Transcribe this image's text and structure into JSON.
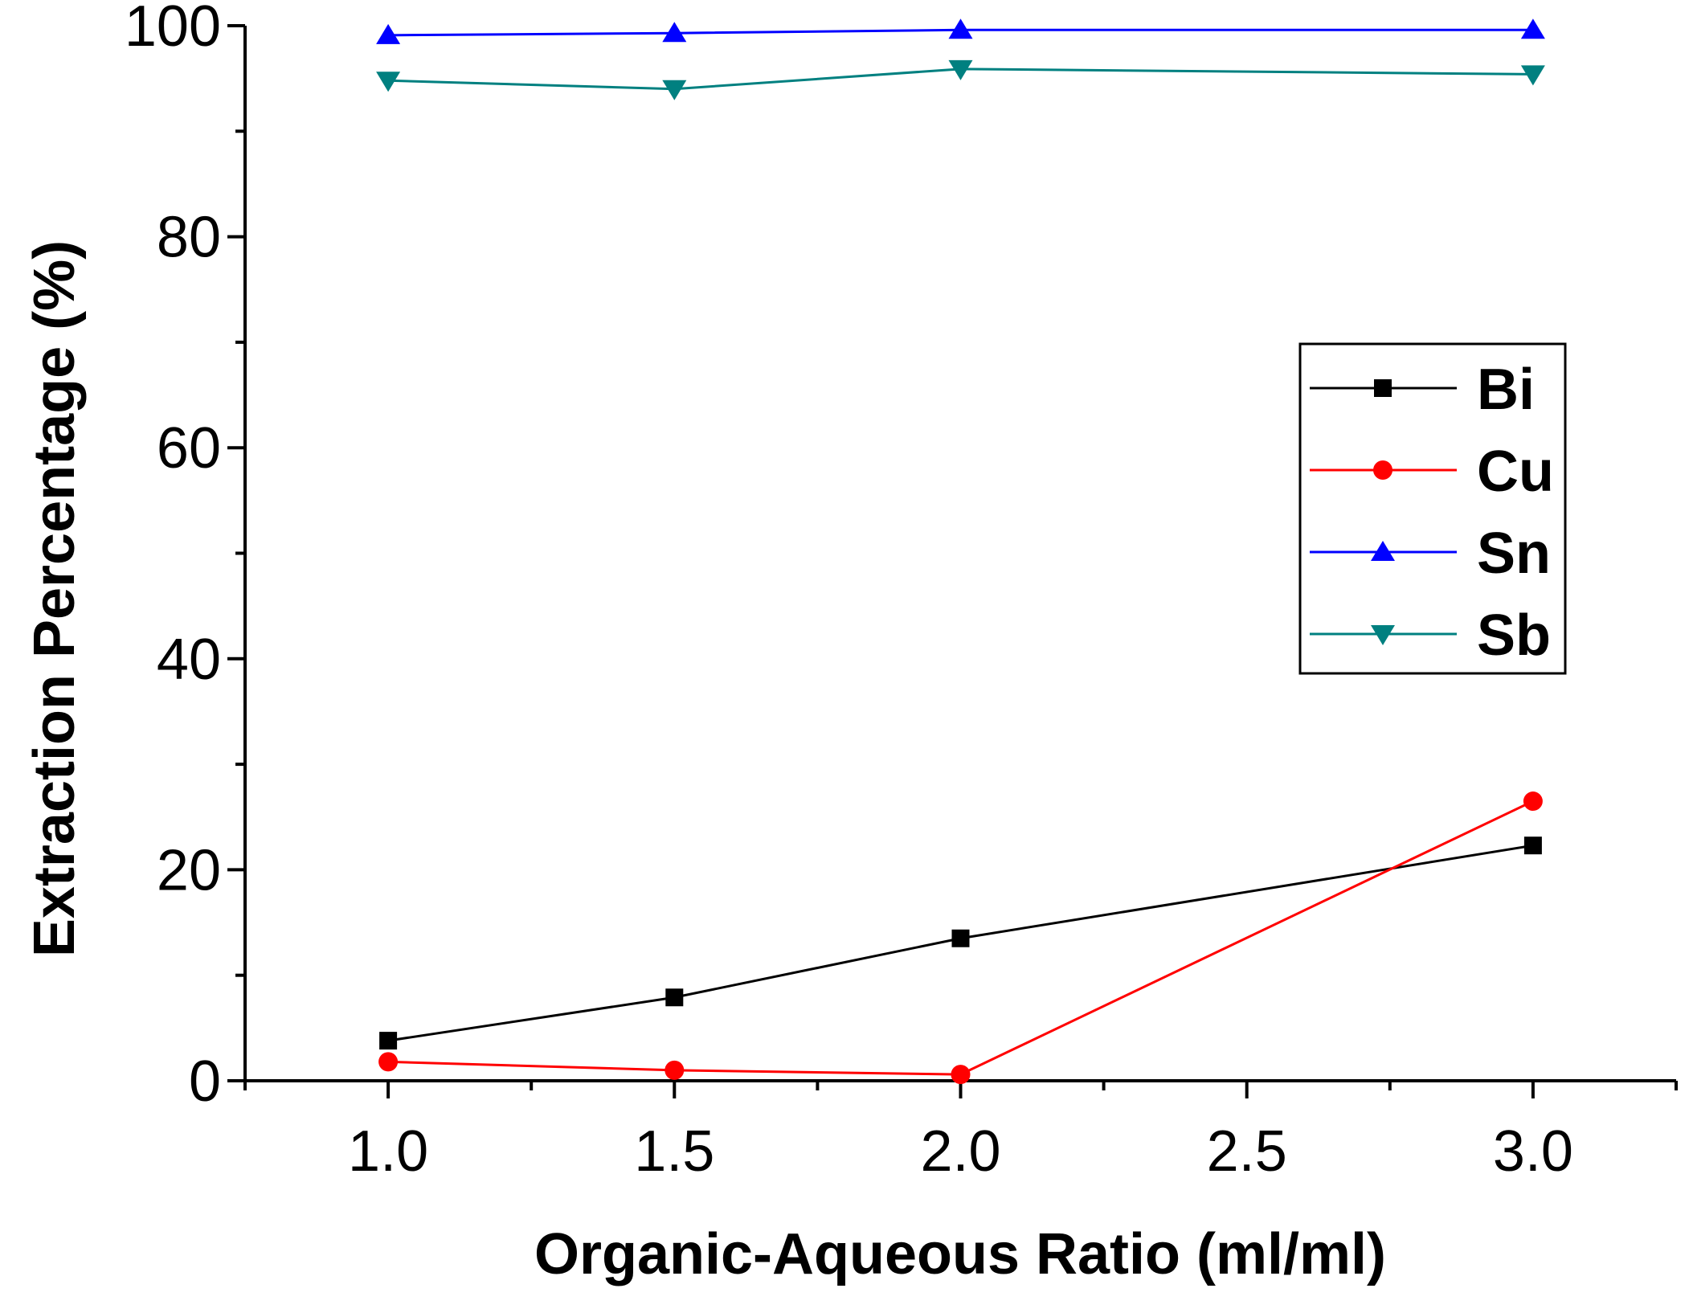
{
  "chart_data": {
    "type": "line",
    "title": "",
    "xlabel": "Organic-Aqueous Ratio (ml/ml)",
    "ylabel": "Extraction Percentage (%)",
    "xlim": [
      0.75,
      3.25
    ],
    "ylim": [
      0,
      100
    ],
    "x_ticks": [
      1.0,
      1.5,
      2.0,
      2.5,
      3.0
    ],
    "x_tick_labels": [
      "1.0",
      "1.5",
      "2.0",
      "2.5",
      "3.0"
    ],
    "y_ticks": [
      0,
      20,
      40,
      60,
      80,
      100
    ],
    "y_tick_labels": [
      "0",
      "20",
      "40",
      "60",
      "80",
      "100"
    ],
    "grid": false,
    "legend_position": "right",
    "x": [
      1.0,
      1.5,
      2.0,
      3.0
    ],
    "series": [
      {
        "name": "Bi",
        "color": "#000000",
        "marker": "square",
        "values": [
          3.8,
          7.9,
          13.5,
          22.3
        ]
      },
      {
        "name": "Cu",
        "color": "#ff0000",
        "marker": "circle",
        "values": [
          1.8,
          1.0,
          0.6,
          26.5
        ]
      },
      {
        "name": "Sn",
        "color": "#0000ff",
        "marker": "triangle-up",
        "values": [
          99.1,
          99.3,
          99.6,
          99.6
        ]
      },
      {
        "name": "Sb",
        "color": "#008080",
        "marker": "triangle-down",
        "values": [
          94.8,
          94.0,
          95.9,
          95.4
        ]
      }
    ]
  }
}
